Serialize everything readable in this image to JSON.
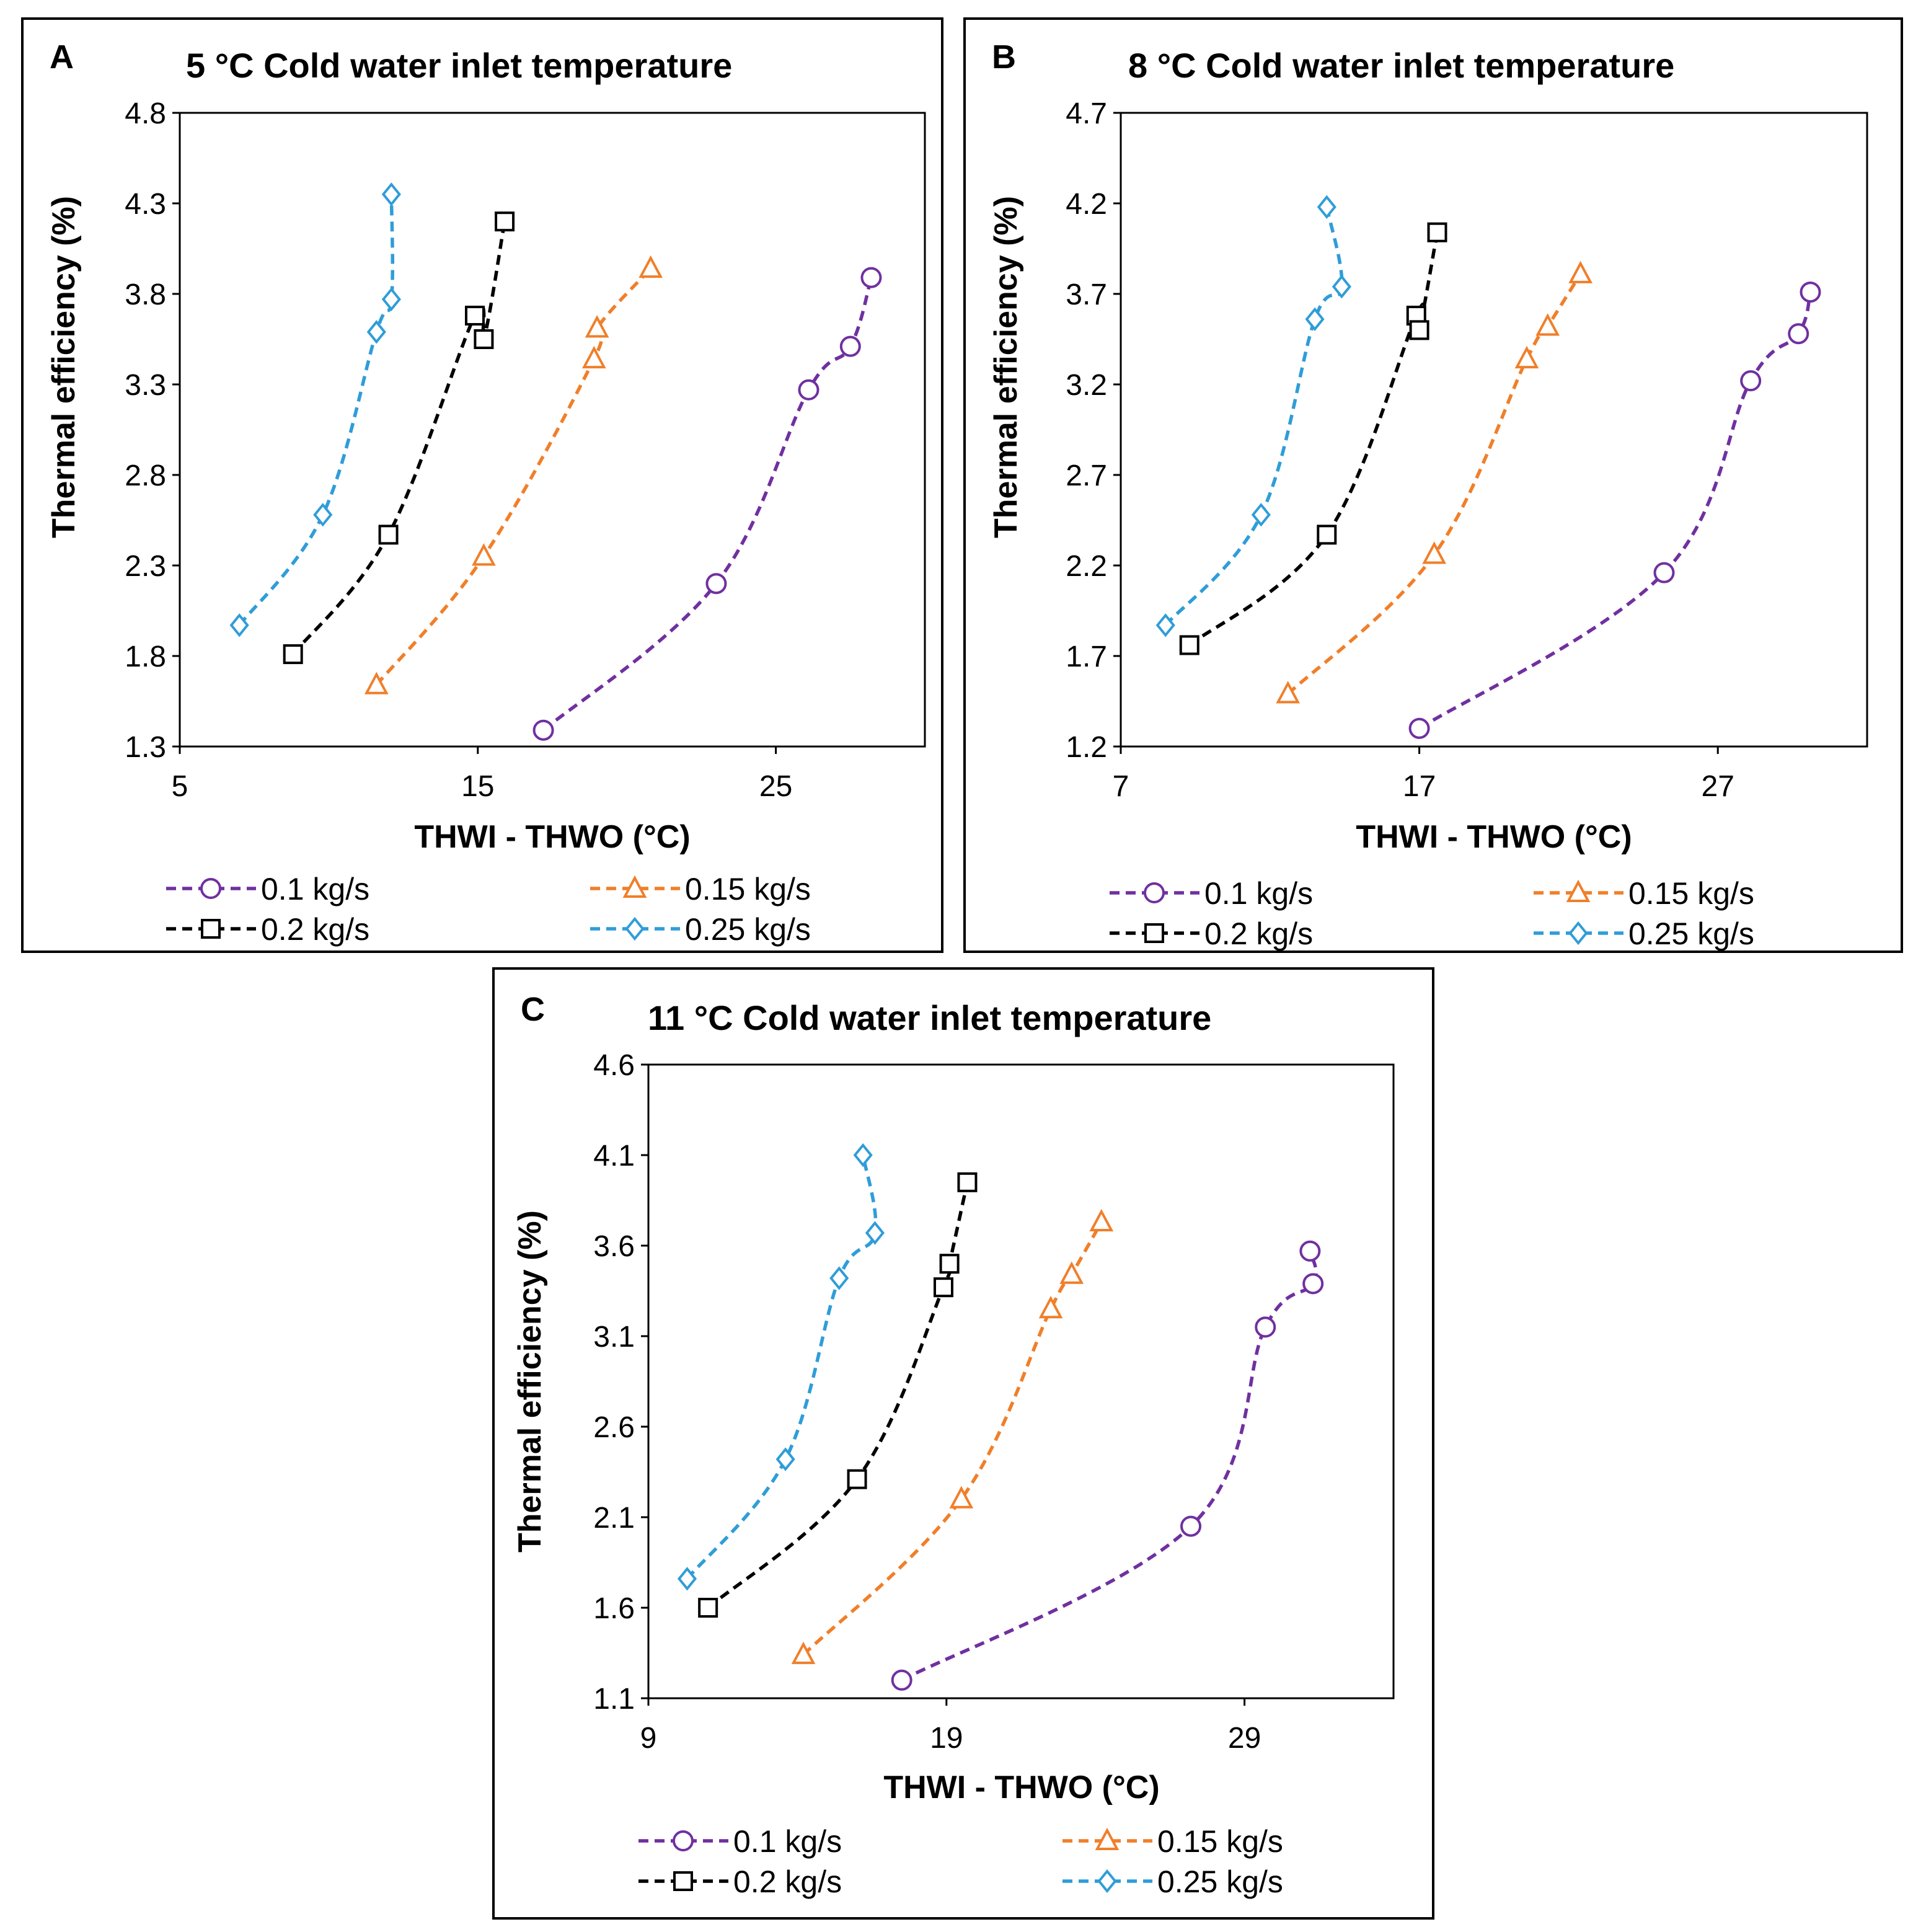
{
  "colors": {
    "0.1": "#7030a0",
    "0.15": "#f07f2a",
    "0.2": "#000000",
    "0.25": "#2f9dd8"
  },
  "chart_data": [
    {
      "panel": "A",
      "type": "line",
      "title": "5 °C Cold water inlet temperature",
      "xlabel": "THWI - THWO (°C)",
      "ylabel": "Thermal efficiency (%)",
      "xlim": [
        5,
        30
      ],
      "ylim": [
        1.3,
        4.8
      ],
      "xticks": [
        5,
        15,
        25
      ],
      "yticks": [
        1.3,
        1.8,
        2.3,
        2.8,
        3.3,
        3.8,
        4.3,
        4.8
      ],
      "legend_position": "bottom",
      "series": [
        {
          "name": "0.1 kg/s",
          "key": "0.1",
          "marker": "circle",
          "x": [
            17.2,
            23.0,
            26.1,
            27.5,
            28.2
          ],
          "y": [
            1.39,
            2.2,
            3.27,
            3.51,
            3.89
          ]
        },
        {
          "name": "0.15 kg/s",
          "key": "0.15",
          "marker": "triangle",
          "x": [
            11.6,
            15.2,
            18.9,
            19.0,
            20.8
          ],
          "y": [
            1.64,
            2.35,
            3.44,
            3.61,
            3.94
          ]
        },
        {
          "name": "0.2 kg/s",
          "key": "0.2",
          "marker": "square",
          "x": [
            8.8,
            12.0,
            14.9,
            15.2,
            15.9
          ],
          "y": [
            1.81,
            2.47,
            3.68,
            3.55,
            4.2
          ]
        },
        {
          "name": "0.25 kg/s",
          "key": "0.25",
          "marker": "diamond",
          "x": [
            7.0,
            9.8,
            11.6,
            12.1,
            12.1
          ],
          "y": [
            1.97,
            2.58,
            3.59,
            3.77,
            4.35
          ]
        }
      ]
    },
    {
      "panel": "B",
      "type": "line",
      "title": "8 °C Cold water inlet temperature",
      "xlabel": "THWI - THWO (°C)",
      "ylabel": "Thermal efficiency (%)",
      "xlim": [
        7,
        32
      ],
      "ylim": [
        1.2,
        4.7
      ],
      "xticks": [
        7,
        17,
        27
      ],
      "yticks": [
        1.2,
        1.7,
        2.2,
        2.7,
        3.2,
        3.7,
        4.2,
        4.7
      ],
      "legend_position": "bottom",
      "series": [
        {
          "name": "0.1 kg/s",
          "key": "0.1",
          "marker": "circle",
          "x": [
            17.0,
            25.2,
            28.1,
            29.7,
            30.1
          ],
          "y": [
            1.3,
            2.16,
            3.22,
            3.48,
            3.71
          ]
        },
        {
          "name": "0.15 kg/s",
          "key": "0.15",
          "marker": "triangle",
          "x": [
            12.6,
            17.5,
            20.6,
            21.3,
            22.4
          ],
          "y": [
            1.49,
            2.26,
            3.34,
            3.52,
            3.81
          ]
        },
        {
          "name": "0.2 kg/s",
          "key": "0.2",
          "marker": "square",
          "x": [
            9.3,
            13.9,
            16.9,
            17.0,
            17.6
          ],
          "y": [
            1.76,
            2.37,
            3.58,
            3.5,
            4.04
          ]
        },
        {
          "name": "0.25 kg/s",
          "key": "0.25",
          "marker": "diamond",
          "x": [
            8.5,
            11.7,
            13.5,
            14.4,
            13.9
          ],
          "y": [
            1.87,
            2.48,
            3.56,
            3.74,
            4.18
          ]
        }
      ]
    },
    {
      "panel": "C",
      "type": "line",
      "title": "11 °C Cold water inlet temperature",
      "xlabel": "THWI - THWO (°C)",
      "ylabel": "Thermal efficiency (%)",
      "xlim": [
        9,
        34
      ],
      "ylim": [
        1.1,
        4.6
      ],
      "xticks": [
        9,
        19,
        29
      ],
      "yticks": [
        1.1,
        1.6,
        2.1,
        2.6,
        3.1,
        3.6,
        4.1,
        4.6
      ],
      "legend_position": "bottom",
      "series": [
        {
          "name": "0.1 kg/s",
          "key": "0.1",
          "marker": "circle",
          "x": [
            17.5,
            27.2,
            29.7,
            31.3,
            31.2
          ],
          "y": [
            1.2,
            2.05,
            3.15,
            3.39,
            3.57
          ]
        },
        {
          "name": "0.15 kg/s",
          "key": "0.15",
          "marker": "triangle",
          "x": [
            14.2,
            19.5,
            22.5,
            23.2,
            24.2
          ],
          "y": [
            1.34,
            2.2,
            3.25,
            3.44,
            3.73
          ]
        },
        {
          "name": "0.2 kg/s",
          "key": "0.2",
          "marker": "square",
          "x": [
            11.0,
            16.0,
            18.9,
            19.1,
            19.7
          ],
          "y": [
            1.6,
            2.31,
            3.37,
            3.5,
            3.95
          ]
        },
        {
          "name": "0.25 kg/s",
          "key": "0.25",
          "marker": "diamond",
          "x": [
            10.3,
            13.6,
            15.4,
            16.6,
            16.2
          ],
          "y": [
            1.76,
            2.42,
            3.42,
            3.67,
            4.1
          ]
        }
      ]
    }
  ]
}
